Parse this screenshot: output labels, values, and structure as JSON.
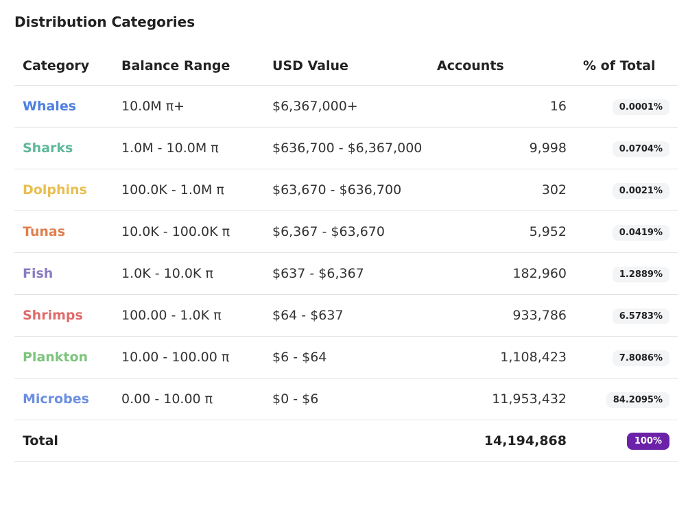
{
  "title": "Distribution Categories",
  "table": {
    "headers": {
      "category": "Category",
      "balance_range": "Balance Range",
      "usd_value": "USD Value",
      "accounts": "Accounts",
      "pct_total": "% of Total"
    },
    "rows": [
      {
        "category": "Whales",
        "color": "#4f7fe0",
        "balance_range": "10.0M π+",
        "usd_value": "$6,367,000+",
        "accounts": "16",
        "pct": "0.0001%"
      },
      {
        "category": "Sharks",
        "color": "#5fb89a",
        "balance_range": "1.0M - 10.0M π",
        "usd_value": "$636,700 - $6,367,000",
        "accounts": "9,998",
        "pct": "0.0704%"
      },
      {
        "category": "Dolphins",
        "color": "#e8be4e",
        "balance_range": "100.0K - 1.0M π",
        "usd_value": "$63,670 - $636,700",
        "accounts": "302",
        "pct": "0.0021%"
      },
      {
        "category": "Tunas",
        "color": "#e07f4e",
        "balance_range": "10.0K - 100.0K π",
        "usd_value": "$6,367 - $63,670",
        "accounts": "5,952",
        "pct": "0.0419%"
      },
      {
        "category": "Fish",
        "color": "#8b7bc4",
        "balance_range": "1.0K - 10.0K π",
        "usd_value": "$637 - $6,367",
        "accounts": "182,960",
        "pct": "1.2889%"
      },
      {
        "category": "Shrimps",
        "color": "#e06b6b",
        "balance_range": "100.00 - 1.0K π",
        "usd_value": "$64 - $637",
        "accounts": "933,786",
        "pct": "6.5783%"
      },
      {
        "category": "Plankton",
        "color": "#7dc47d",
        "balance_range": "10.00 - 100.00 π",
        "usd_value": "$6 - $64",
        "accounts": "1,108,423",
        "pct": "7.8086%"
      },
      {
        "category": "Microbes",
        "color": "#6b8fe0",
        "balance_range": "0.00 - 10.00 π",
        "usd_value": "$0 - $6",
        "accounts": "11,953,432",
        "pct": "84.2095%"
      }
    ],
    "total": {
      "label": "Total",
      "accounts": "14,194,868",
      "pct": "100%",
      "badge_color": "#6b21a8"
    }
  }
}
